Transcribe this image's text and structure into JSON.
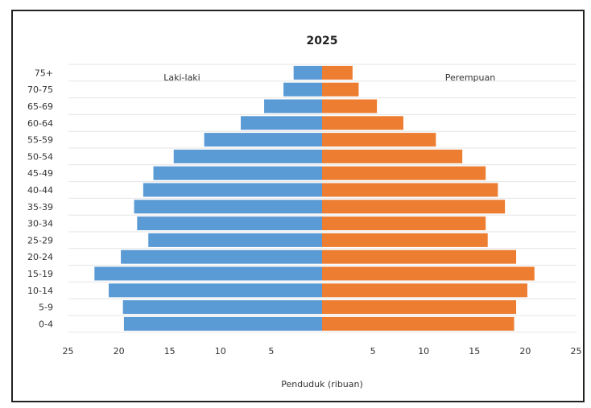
{
  "chart_data": {
    "type": "bar",
    "orientation": "horizontal",
    "title": "2025",
    "xlabel": "Penduduk (ribuan)",
    "ylabel": "",
    "categories": [
      "0-4",
      "5-9",
      "10-14",
      "15-19",
      "20-24",
      "25-29",
      "30-34",
      "35-39",
      "40-44",
      "45-49",
      "50-54",
      "55-59",
      "60-64",
      "65-69",
      "70-75",
      "75+"
    ],
    "series": [
      {
        "name": "Laki-laki",
        "color": "#5b9bd5",
        "side": "left",
        "values": [
          19.5,
          19.6,
          21.0,
          22.4,
          19.8,
          17.1,
          18.2,
          18.5,
          17.6,
          16.6,
          14.6,
          11.6,
          8.0,
          5.7,
          3.8,
          2.8
        ]
      },
      {
        "name": "Perempuan",
        "color": "#ed7d31",
        "side": "right",
        "values": [
          18.9,
          19.1,
          20.2,
          20.9,
          19.1,
          16.3,
          16.1,
          18.0,
          17.3,
          16.1,
          13.8,
          11.2,
          8.0,
          5.4,
          3.6,
          3.0
        ]
      }
    ],
    "xlim": [
      -25,
      25
    ],
    "xticks": [
      "25",
      "20",
      "15",
      "10",
      "5",
      "",
      "5",
      "10",
      "15",
      "20",
      "25"
    ],
    "grid": true,
    "legend": "top-inside"
  }
}
